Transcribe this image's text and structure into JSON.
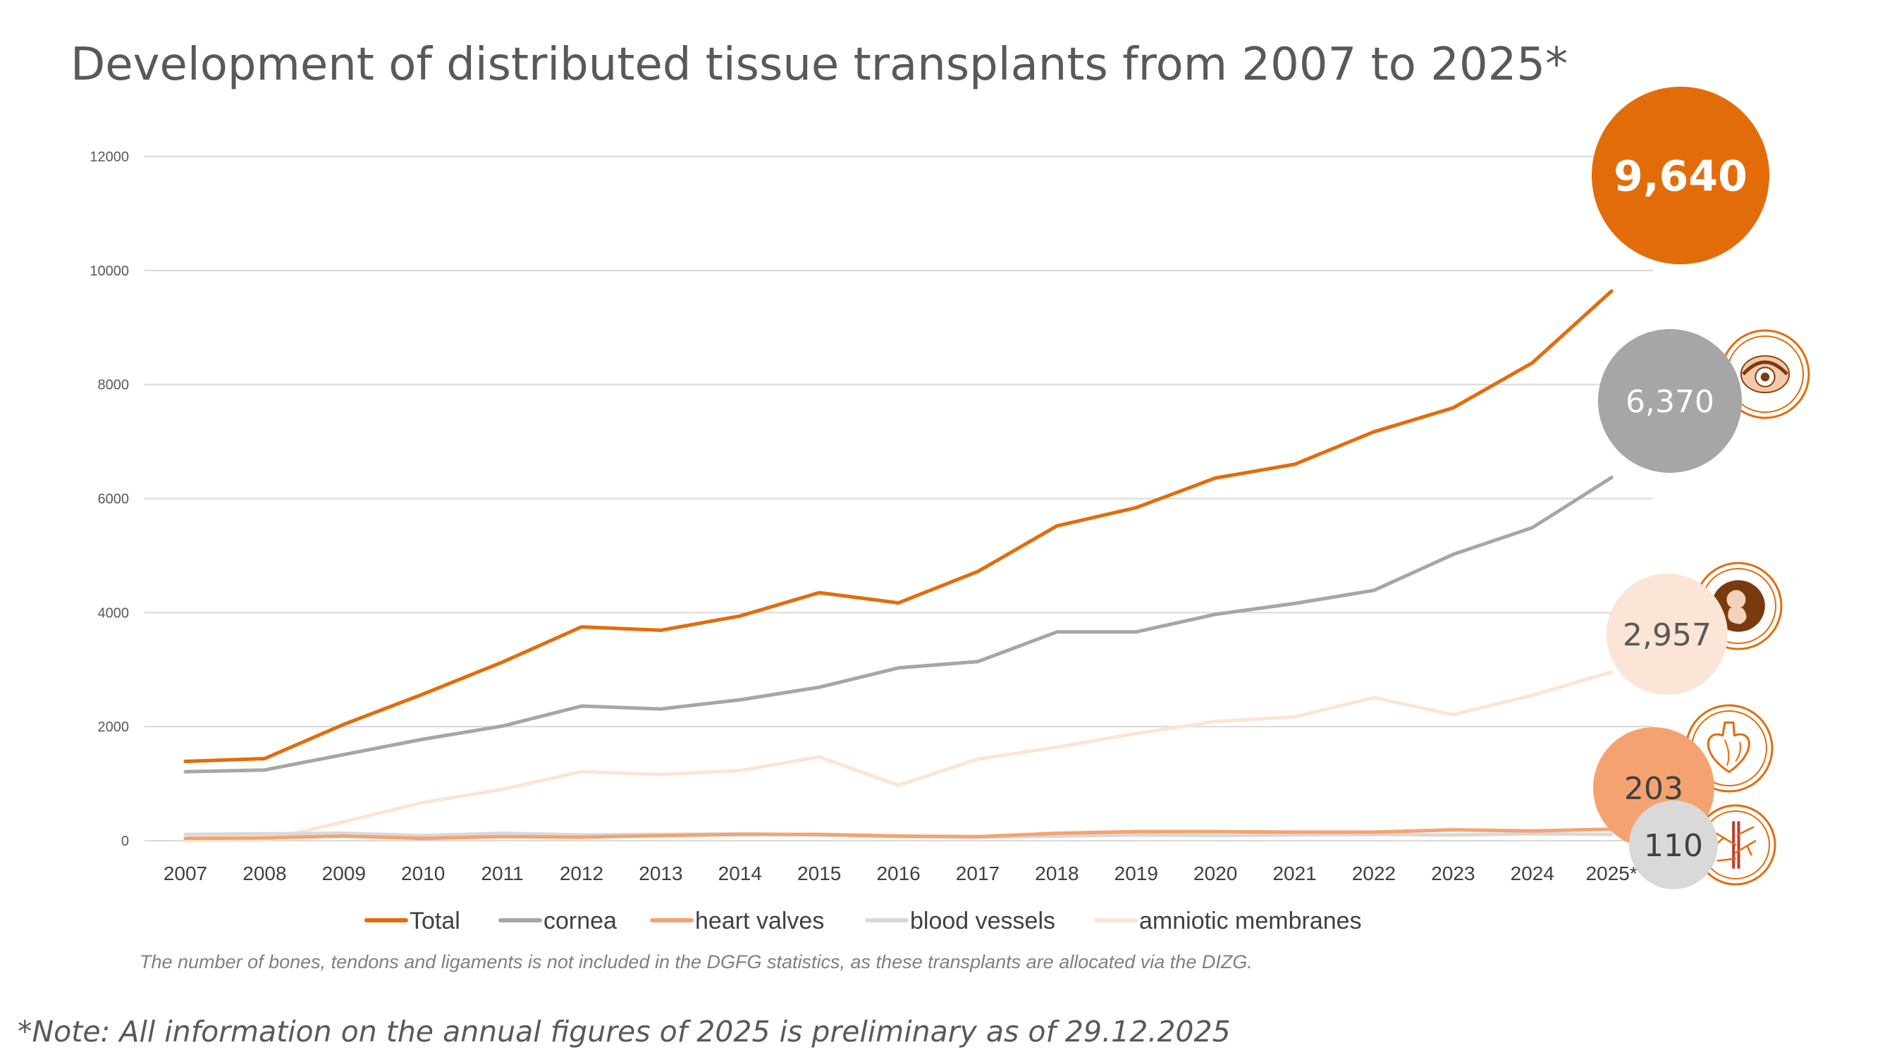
{
  "header": {
    "title": "Development of distributed tissue transplants from 2007 to 2025*"
  },
  "chart_data": {
    "type": "line",
    "title": "Development of distributed tissue transplants from 2007 to 2025*",
    "xlabel": "",
    "ylabel": "",
    "ylim": [
      0,
      12000
    ],
    "yticks": [
      0,
      2000,
      4000,
      6000,
      8000,
      10000,
      12000
    ],
    "grid": true,
    "legend_position": "bottom",
    "categories": [
      "2007",
      "2008",
      "2009",
      "2010",
      "2011",
      "2012",
      "2013",
      "2014",
      "2015",
      "2016",
      "2017",
      "2018",
      "2019",
      "2020",
      "2021",
      "2022",
      "2023",
      "2024",
      "2025*"
    ],
    "series": [
      {
        "name": "Total",
        "color": "#E36C0A",
        "values": [
          1390,
          1440,
          2040,
          2570,
          3130,
          3750,
          3690,
          3940,
          4350,
          4170,
          4720,
          5520,
          5840,
          6360,
          6600,
          7170,
          7590,
          8380,
          9640
        ]
      },
      {
        "name": "cornea",
        "color": "#A6A6A6",
        "values": [
          1210,
          1240,
          1510,
          1780,
          2010,
          2360,
          2310,
          2470,
          2690,
          3030,
          3140,
          3660,
          3660,
          3970,
          4160,
          4390,
          5020,
          5490,
          6370
        ]
      },
      {
        "name": "heart valves",
        "color": "#F4A370",
        "values": [
          40,
          50,
          80,
          40,
          70,
          60,
          90,
          110,
          110,
          80,
          70,
          130,
          160,
          160,
          150,
          150,
          190,
          170,
          203
        ]
      },
      {
        "name": "blood vessels",
        "color": "#D9D9D9",
        "values": [
          110,
          120,
          130,
          90,
          130,
          100,
          110,
          120,
          100,
          70,
          60,
          80,
          100,
          90,
          100,
          110,
          100,
          120,
          110
        ]
      },
      {
        "name": "amniotic membranes",
        "color": "#FBE5D6",
        "values": [
          0,
          10,
          330,
          670,
          900,
          1210,
          1160,
          1230,
          1470,
          970,
          1430,
          1640,
          1880,
          2090,
          2170,
          2510,
          2210,
          2550,
          2957
        ]
      }
    ],
    "badges": [
      {
        "series": "Total",
        "label": "9,640",
        "fill": "#E36C0A",
        "text_color": "#FFFFFF",
        "bold": true,
        "icon": null
      },
      {
        "series": "cornea",
        "label": "6,370",
        "fill": "#A6A6A6",
        "text_color": "#FFFFFF",
        "bold": false,
        "icon": "eye-icon"
      },
      {
        "series": "amniotic membranes",
        "label": "2,957",
        "fill": "#FBE5D6",
        "text_color": "#595959",
        "bold": false,
        "icon": "fetus-icon"
      },
      {
        "series": "heart valves",
        "label": "203",
        "fill": "#F4A370",
        "text_color": "#404040",
        "bold": false,
        "icon": "heart-icon"
      },
      {
        "series": "blood vessels",
        "label": "110",
        "fill": "#D9D9D9",
        "text_color": "#404040",
        "bold": false,
        "icon": "blood-vessel-icon"
      }
    ]
  },
  "footnote": "The number of bones, tendons and ligaments is not included in the DGFG statistics, as these transplants are allocated via the DIZG.",
  "note": "*Note: All information on the annual figures of 2025 is preliminary as of 29.12.2025"
}
